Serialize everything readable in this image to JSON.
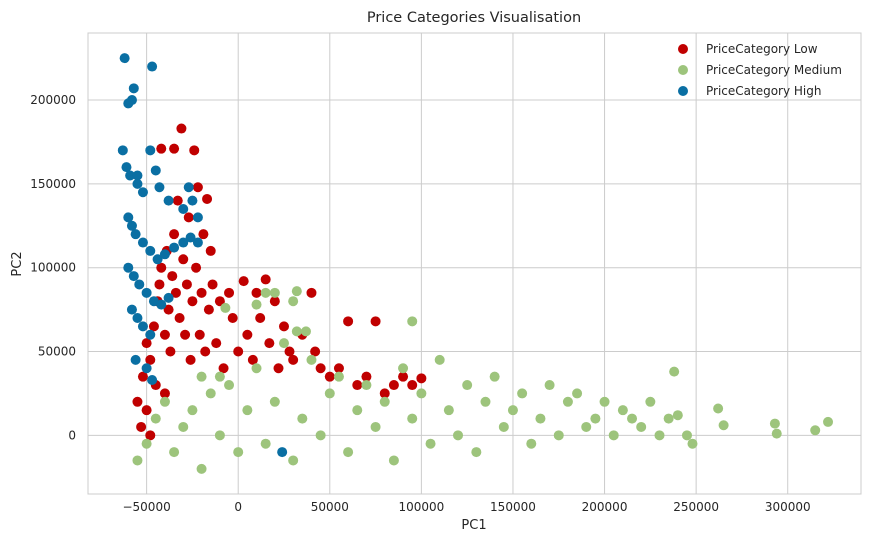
{
  "chart_data": {
    "type": "scatter",
    "title": "Price Categories Visualisation",
    "xlabel": "PC1",
    "ylabel": "PC2",
    "xlim": [
      -82000,
      340000
    ],
    "ylim": [
      -35000,
      240000
    ],
    "xticks": [
      -50000,
      0,
      50000,
      100000,
      150000,
      200000,
      250000,
      300000
    ],
    "xtick_labels": [
      "−50000",
      "0",
      "50000",
      "100000",
      "150000",
      "200000",
      "250000",
      "300000"
    ],
    "yticks": [
      0,
      50000,
      100000,
      150000,
      200000
    ],
    "ytick_labels": [
      "0",
      "50000",
      "100000",
      "150000",
      "200000"
    ],
    "grid": true,
    "legend_position": "top-right",
    "series": [
      {
        "name": "PriceCategory Low",
        "color": "#c00000",
        "points": [
          [
            -55000,
            20000
          ],
          [
            -53000,
            5000
          ],
          [
            -52000,
            35000
          ],
          [
            -50000,
            55000
          ],
          [
            -48000,
            45000
          ],
          [
            -46000,
            65000
          ],
          [
            -45000,
            30000
          ],
          [
            -44000,
            80000
          ],
          [
            -43000,
            90000
          ],
          [
            -42000,
            100000
          ],
          [
            -40000,
            60000
          ],
          [
            -39000,
            110000
          ],
          [
            -38000,
            75000
          ],
          [
            -37000,
            50000
          ],
          [
            -36000,
            95000
          ],
          [
            -35000,
            120000
          ],
          [
            -34000,
            85000
          ],
          [
            -33000,
            140000
          ],
          [
            -32000,
            70000
          ],
          [
            -31000,
            183000
          ],
          [
            -30000,
            105000
          ],
          [
            -29000,
            60000
          ],
          [
            -28000,
            90000
          ],
          [
            -27000,
            130000
          ],
          [
            -26000,
            45000
          ],
          [
            -25000,
            80000
          ],
          [
            -24000,
            170000
          ],
          [
            -23000,
            100000
          ],
          [
            -22000,
            148000
          ],
          [
            -21000,
            60000
          ],
          [
            -20000,
            85000
          ],
          [
            -19000,
            120000
          ],
          [
            -18000,
            50000
          ],
          [
            -17000,
            141000
          ],
          [
            -16000,
            75000
          ],
          [
            -15000,
            110000
          ],
          [
            -14000,
            90000
          ],
          [
            -12000,
            55000
          ],
          [
            -10000,
            80000
          ],
          [
            -8000,
            40000
          ],
          [
            -5000,
            85000
          ],
          [
            -3000,
            70000
          ],
          [
            0,
            50000
          ],
          [
            3000,
            92000
          ],
          [
            5000,
            60000
          ],
          [
            8000,
            45000
          ],
          [
            10000,
            85000
          ],
          [
            12000,
            70000
          ],
          [
            15000,
            93000
          ],
          [
            17000,
            55000
          ],
          [
            20000,
            80000
          ],
          [
            22000,
            40000
          ],
          [
            25000,
            65000
          ],
          [
            28000,
            50000
          ],
          [
            30000,
            45000
          ],
          [
            35000,
            60000
          ],
          [
            40000,
            85000
          ],
          [
            42000,
            50000
          ],
          [
            45000,
            40000
          ],
          [
            50000,
            35000
          ],
          [
            55000,
            40000
          ],
          [
            60000,
            68000
          ],
          [
            65000,
            30000
          ],
          [
            70000,
            35000
          ],
          [
            75000,
            68000
          ],
          [
            80000,
            25000
          ],
          [
            85000,
            30000
          ],
          [
            90000,
            35000
          ],
          [
            95000,
            30000
          ],
          [
            100000,
            34000
          ],
          [
            -42000,
            171000
          ],
          [
            -35000,
            171000
          ],
          [
            -48000,
            0
          ],
          [
            -50000,
            15000
          ],
          [
            -40000,
            25000
          ]
        ]
      },
      {
        "name": "PriceCategory Medium",
        "color": "#9dc47c",
        "points": [
          [
            -55000,
            -15000
          ],
          [
            -50000,
            -5000
          ],
          [
            -45000,
            10000
          ],
          [
            -40000,
            20000
          ],
          [
            -35000,
            -10000
          ],
          [
            -30000,
            5000
          ],
          [
            -25000,
            15000
          ],
          [
            -20000,
            -20000
          ],
          [
            -15000,
            25000
          ],
          [
            -10000,
            0
          ],
          [
            -5000,
            30000
          ],
          [
            0,
            -10000
          ],
          [
            5000,
            15000
          ],
          [
            10000,
            40000
          ],
          [
            15000,
            -5000
          ],
          [
            20000,
            20000
          ],
          [
            25000,
            55000
          ],
          [
            30000,
            -15000
          ],
          [
            35000,
            10000
          ],
          [
            40000,
            45000
          ],
          [
            45000,
            0
          ],
          [
            50000,
            25000
          ],
          [
            55000,
            35000
          ],
          [
            60000,
            -10000
          ],
          [
            65000,
            15000
          ],
          [
            70000,
            30000
          ],
          [
            75000,
            5000
          ],
          [
            80000,
            20000
          ],
          [
            85000,
            -15000
          ],
          [
            90000,
            40000
          ],
          [
            95000,
            10000
          ],
          [
            100000,
            25000
          ],
          [
            105000,
            -5000
          ],
          [
            110000,
            45000
          ],
          [
            115000,
            15000
          ],
          [
            120000,
            0
          ],
          [
            125000,
            30000
          ],
          [
            130000,
            -10000
          ],
          [
            135000,
            20000
          ],
          [
            140000,
            35000
          ],
          [
            145000,
            5000
          ],
          [
            150000,
            15000
          ],
          [
            155000,
            25000
          ],
          [
            160000,
            -5000
          ],
          [
            165000,
            10000
          ],
          [
            170000,
            30000
          ],
          [
            175000,
            0
          ],
          [
            180000,
            20000
          ],
          [
            185000,
            25000
          ],
          [
            190000,
            5000
          ],
          [
            195000,
            10000
          ],
          [
            200000,
            20000
          ],
          [
            205000,
            0
          ],
          [
            210000,
            15000
          ],
          [
            215000,
            10000
          ],
          [
            220000,
            5000
          ],
          [
            225000,
            20000
          ],
          [
            230000,
            0
          ],
          [
            235000,
            10000
          ],
          [
            238000,
            38000
          ],
          [
            240000,
            12000
          ],
          [
            245000,
            0
          ],
          [
            248000,
            -5000
          ],
          [
            262000,
            16000
          ],
          [
            265000,
            6000
          ],
          [
            293000,
            7000
          ],
          [
            294000,
            1000
          ],
          [
            315000,
            3000
          ],
          [
            322000,
            8000
          ],
          [
            15000,
            85000
          ],
          [
            20000,
            85000
          ],
          [
            32000,
            86000
          ],
          [
            -7000,
            76000
          ],
          [
            10000,
            78000
          ],
          [
            30000,
            80000
          ],
          [
            37000,
            62000
          ],
          [
            32000,
            62000
          ],
          [
            95000,
            68000
          ],
          [
            -10000,
            35000
          ],
          [
            -20000,
            35000
          ]
        ]
      },
      {
        "name": "PriceCategory High",
        "color": "#0a6fa3",
        "points": [
          [
            -62000,
            225000
          ],
          [
            -47000,
            220000
          ],
          [
            -57000,
            207000
          ],
          [
            -58000,
            200000
          ],
          [
            -60000,
            198000
          ],
          [
            -63000,
            170000
          ],
          [
            -61000,
            160000
          ],
          [
            -59000,
            155000
          ],
          [
            -55000,
            150000
          ],
          [
            -52000,
            145000
          ],
          [
            -48000,
            170000
          ],
          [
            -45000,
            158000
          ],
          [
            -43000,
            148000
          ],
          [
            -38000,
            140000
          ],
          [
            -30000,
            135000
          ],
          [
            -27000,
            148000
          ],
          [
            -60000,
            130000
          ],
          [
            -58000,
            125000
          ],
          [
            -56000,
            120000
          ],
          [
            -52000,
            115000
          ],
          [
            -48000,
            110000
          ],
          [
            -44000,
            105000
          ],
          [
            -40000,
            108000
          ],
          [
            -35000,
            112000
          ],
          [
            -30000,
            115000
          ],
          [
            -26000,
            118000
          ],
          [
            -22000,
            115000
          ],
          [
            -60000,
            100000
          ],
          [
            -57000,
            95000
          ],
          [
            -54000,
            90000
          ],
          [
            -50000,
            85000
          ],
          [
            -46000,
            80000
          ],
          [
            -42000,
            78000
          ],
          [
            -38000,
            82000
          ],
          [
            -58000,
            75000
          ],
          [
            -55000,
            70000
          ],
          [
            -52000,
            65000
          ],
          [
            -48000,
            60000
          ],
          [
            -56000,
            45000
          ],
          [
            -50000,
            40000
          ],
          [
            -47000,
            33000
          ],
          [
            24000,
            -10000
          ],
          [
            -25000,
            140000
          ],
          [
            -22000,
            130000
          ],
          [
            -55000,
            155000
          ]
        ]
      }
    ]
  }
}
